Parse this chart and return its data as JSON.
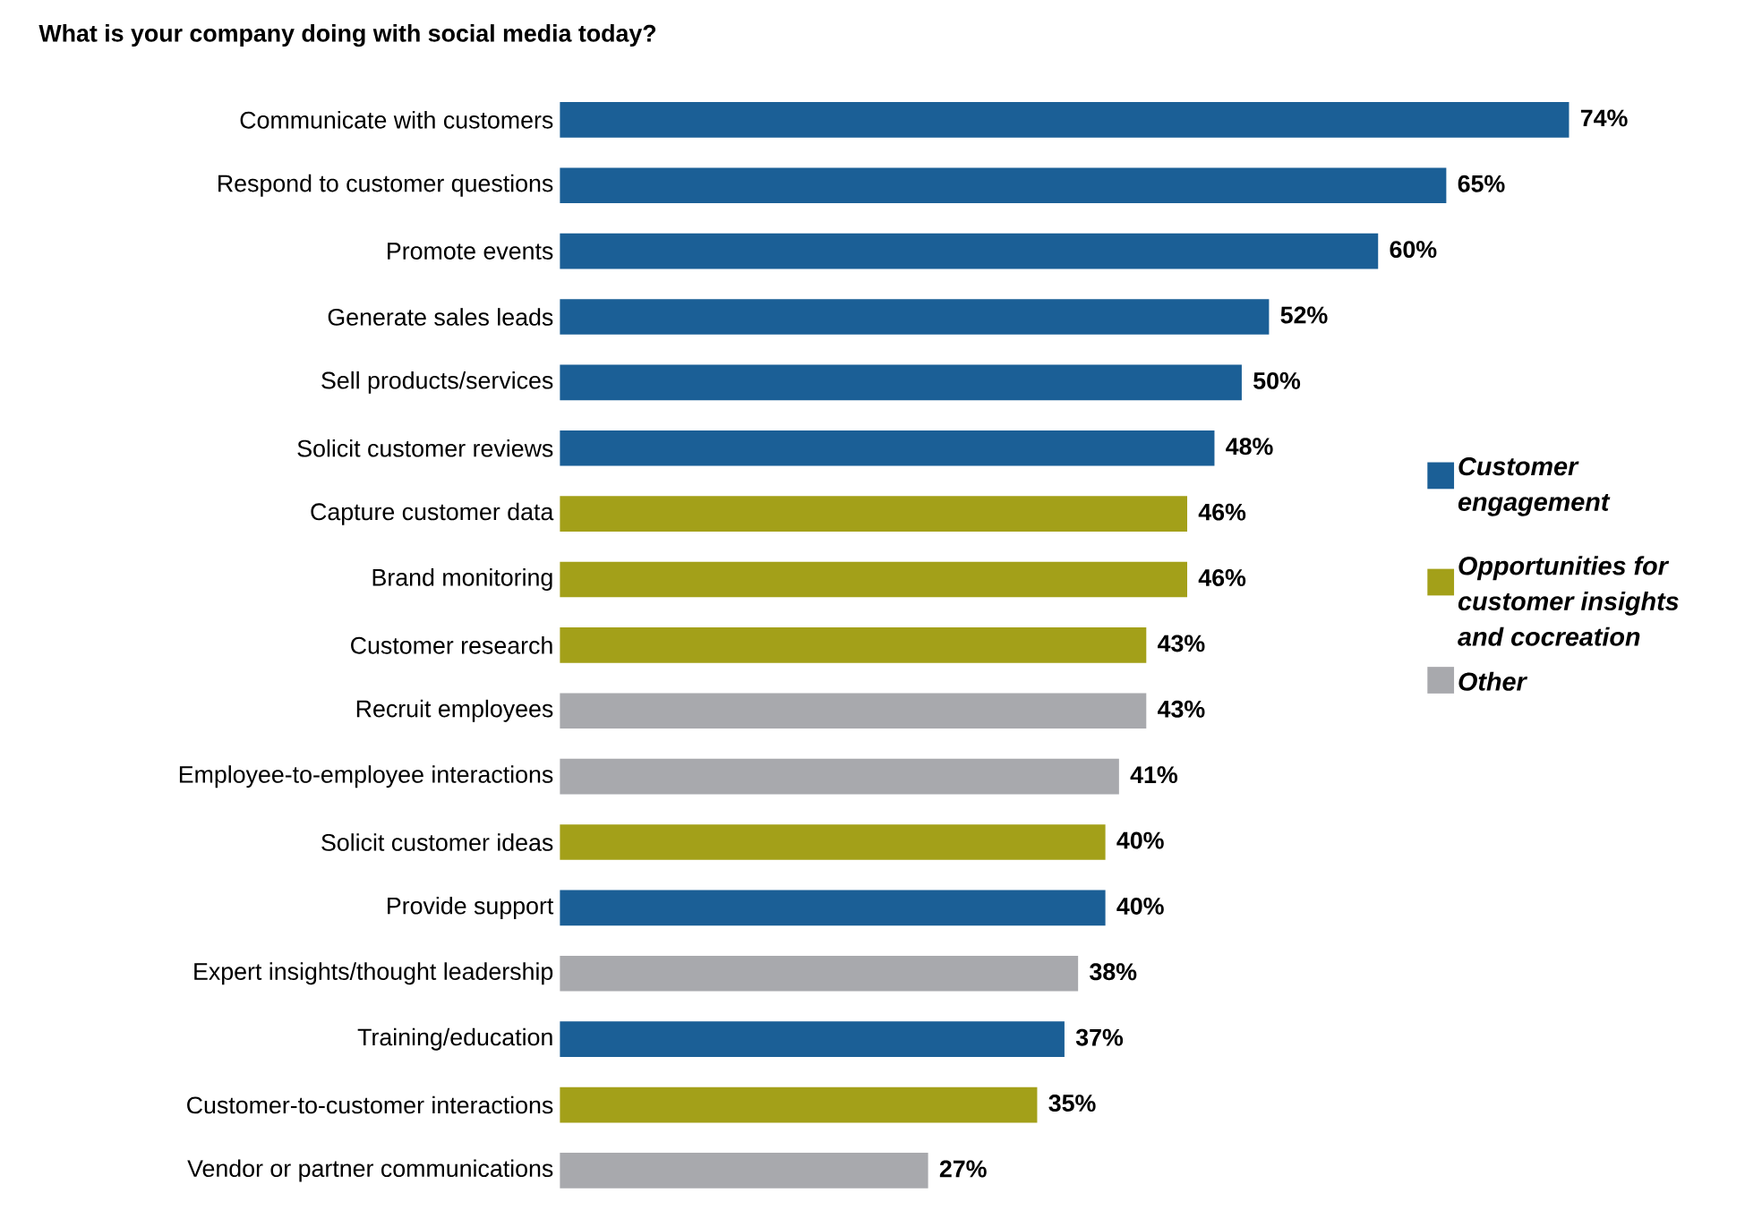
{
  "chart_data": {
    "type": "bar",
    "orientation": "horizontal",
    "title": "What is your company doing with social media today?",
    "categories": [
      "Communicate with customers",
      "Respond to customer questions",
      "Promote events",
      "Generate sales leads",
      "Sell products/services",
      "Solicit customer reviews",
      "Capture customer data",
      "Brand monitoring",
      "Customer research",
      "Recruit employees",
      "Employee-to-employee interactions",
      "Solicit customer ideas",
      "Provide support",
      "Expert insights/thought leadership",
      "Training/education",
      "Customer-to-customer interactions",
      "Vendor or partner communications"
    ],
    "series": [
      {
        "name": "Customer engagement",
        "color": "#1b5f96",
        "values": [
          74,
          65,
          60,
          52,
          50,
          48,
          null,
          null,
          null,
          null,
          null,
          null,
          40,
          null,
          37,
          null,
          null
        ],
        "value_labels": [
          "74%",
          "65%",
          "60%",
          "52%",
          "50%",
          "48%",
          null,
          null,
          null,
          null,
          null,
          null,
          "40%",
          null,
          "37%",
          null,
          null
        ]
      },
      {
        "name": "Opportunities for customer insights and cocreation",
        "color": "#a3a019",
        "values": [
          null,
          null,
          null,
          null,
          null,
          null,
          46,
          46,
          43,
          null,
          null,
          40,
          null,
          null,
          null,
          35,
          null
        ],
        "value_labels": [
          null,
          null,
          null,
          null,
          null,
          null,
          "46%",
          "46%",
          "43%",
          null,
          null,
          "40%",
          null,
          null,
          null,
          "35%",
          null
        ]
      },
      {
        "name": "Other",
        "color": "#a8a9ad",
        "values": [
          null,
          null,
          null,
          null,
          null,
          null,
          null,
          null,
          null,
          43,
          41,
          null,
          null,
          38,
          null,
          null,
          27
        ],
        "value_labels": [
          null,
          null,
          null,
          null,
          null,
          null,
          null,
          null,
          null,
          "43%",
          "41%",
          null,
          null,
          "38%",
          null,
          null,
          "27%"
        ]
      }
    ],
    "legend": "right"
  }
}
